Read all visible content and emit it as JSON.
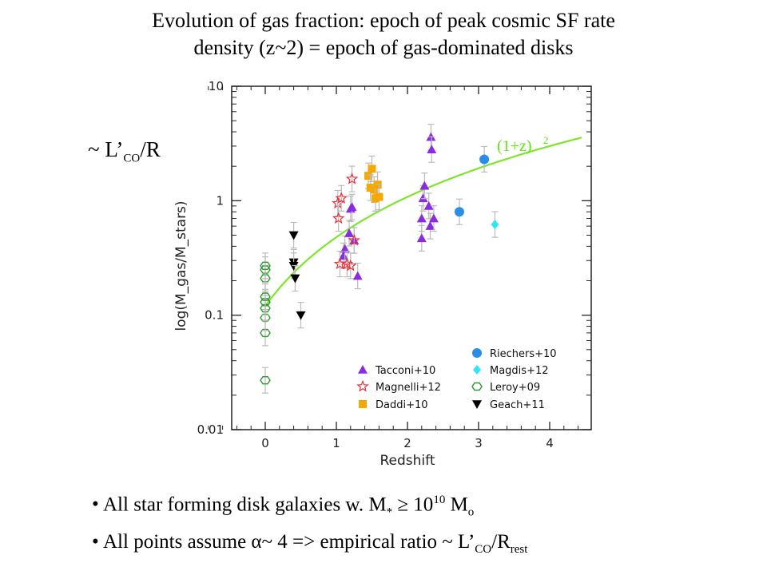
{
  "title_line1": "Evolution of gas fraction: epoch of peak cosmic SF rate",
  "title_line2": "density (z~2) = epoch of gas-dominated  disks",
  "side_label_prefix": "~ L’",
  "side_label_sub": "CO",
  "side_label_suffix": "/R",
  "bullets": {
    "b1_text": "All star forming disk galaxies w.  M",
    "b1_sub": "*",
    "b1_mid": " ≥ 10",
    "b1_sup": "10",
    "b1_end": " M",
    "b1_end_sub": "o",
    "b2_text": "All points assume  α~ 4 => empirical ratio ~ L’",
    "b2_sub": "CO",
    "b2_mid": "/R",
    "b2_sub2": "rest"
  },
  "colors": {
    "curve": "#7ee62a",
    "tacconi": "#8a2be2",
    "magnelli": "#e8303a",
    "daddi": "#f5a800",
    "riechers": "#2b8ee6",
    "magdis": "#33e5f0",
    "leroy": "#2e9a2e",
    "geach": "#000000",
    "errorbar": "#bbbbbb"
  },
  "chart_data": {
    "type": "scatter",
    "xlabel": "Redshift",
    "ylabel": "log(M_gas/M_stars)",
    "xlim": [
      -0.9,
      4.5
    ],
    "ylim": [
      0.01,
      10
    ],
    "yscale": "log",
    "xticks": [
      "0",
      "1",
      "2",
      "3",
      "4"
    ],
    "yticks": [
      "0.01",
      "0.1",
      "1",
      "10"
    ],
    "legend_position": "bottom-right",
    "curve": {
      "label": "(1+z)",
      "label_sup": "2",
      "normalization": 0.12,
      "x_range": [
        0,
        4.45
      ]
    },
    "series": [
      {
        "name": "Tacconi+10",
        "marker": "triangle",
        "points": [
          [
            1.1,
            0.33
          ],
          [
            1.12,
            0.38
          ],
          [
            1.18,
            0.52
          ],
          [
            1.2,
            0.85
          ],
          [
            1.22,
            0.88
          ],
          [
            1.25,
            0.45
          ],
          [
            1.3,
            0.22
          ],
          [
            2.2,
            0.47
          ],
          [
            2.2,
            0.7
          ],
          [
            2.22,
            1.05
          ],
          [
            2.24,
            1.35
          ],
          [
            2.3,
            0.9
          ],
          [
            2.32,
            0.6
          ],
          [
            2.33,
            3.6
          ],
          [
            2.34,
            2.8
          ],
          [
            2.37,
            0.7
          ]
        ]
      },
      {
        "name": "Magnelli+12",
        "marker": "star",
        "points": [
          [
            1.02,
            0.95
          ],
          [
            1.03,
            0.7
          ],
          [
            1.05,
            0.28
          ],
          [
            1.07,
            1.05
          ],
          [
            1.15,
            0.28
          ],
          [
            1.2,
            0.27
          ],
          [
            1.22,
            1.55
          ],
          [
            1.25,
            0.45
          ]
        ]
      },
      {
        "name": "Daddi+10",
        "marker": "square",
        "points": [
          [
            1.45,
            1.65
          ],
          [
            1.48,
            1.3
          ],
          [
            1.5,
            1.9
          ],
          [
            1.53,
            1.25
          ],
          [
            1.55,
            1.05
          ],
          [
            1.58,
            1.38
          ],
          [
            1.6,
            1.08
          ]
        ]
      },
      {
        "name": "Riechers+10",
        "marker": "circle",
        "points": [
          [
            2.73,
            0.8
          ],
          [
            3.08,
            2.3
          ]
        ]
      },
      {
        "name": "Magdis+12",
        "marker": "diamond",
        "points": [
          [
            3.23,
            0.62
          ]
        ]
      },
      {
        "name": "Leroy+09",
        "marker": "hexagon-open",
        "points": [
          [
            0,
            0.027
          ],
          [
            0,
            0.07
          ],
          [
            0,
            0.095
          ],
          [
            0,
            0.115
          ],
          [
            0,
            0.13
          ],
          [
            0,
            0.145
          ],
          [
            0,
            0.21
          ],
          [
            0,
            0.25
          ],
          [
            0,
            0.27
          ]
        ]
      },
      {
        "name": "Geach+11",
        "marker": "triangle-down",
        "points": [
          [
            0.4,
            0.5
          ],
          [
            0.4,
            0.29
          ],
          [
            0.4,
            0.27
          ],
          [
            0.42,
            0.21
          ],
          [
            0.5,
            0.1
          ]
        ]
      }
    ]
  }
}
